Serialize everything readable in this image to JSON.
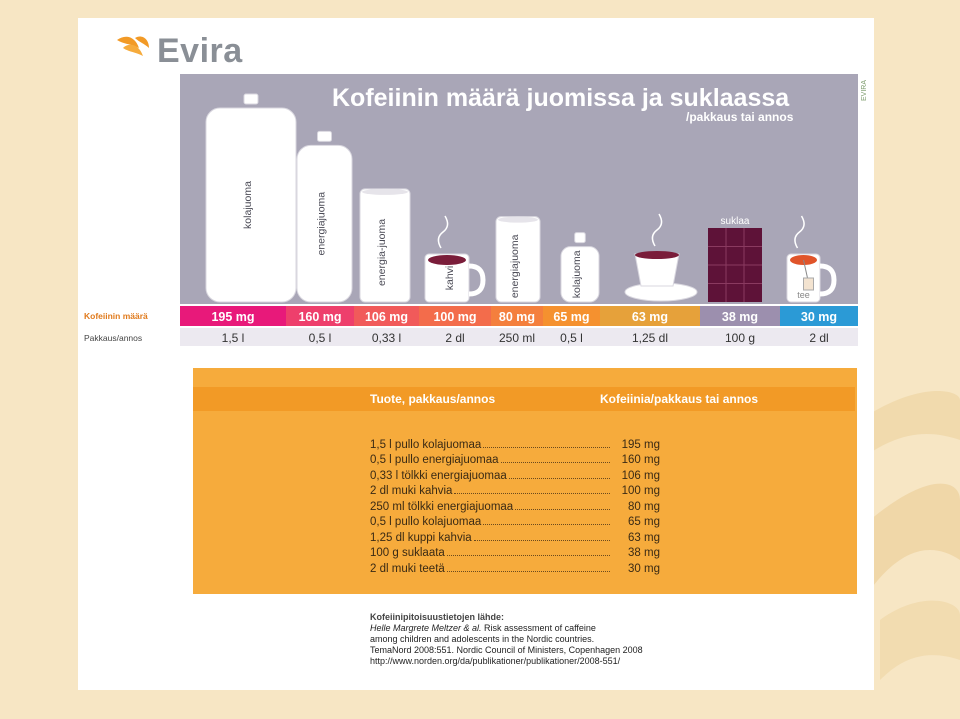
{
  "logo": {
    "text": "Evira"
  },
  "side_text": "EVIRA",
  "chart_data": {
    "type": "bar",
    "title": "Kofeiinin määrä juomissa ja suklaassa",
    "subtitle": "/pakkaus tai annos",
    "row_labels": {
      "caffeine": "Kofeiinin määrä",
      "package": "Pakkaus/annos"
    },
    "categories": [
      "kolajuoma",
      "energiajuoma",
      "energia-juoma",
      "kahvi",
      "energiajuoma",
      "kolajuoma",
      "kahvi",
      "suklaa",
      "tee"
    ],
    "values": [
      195,
      160,
      106,
      100,
      80,
      65,
      63,
      38,
      30
    ],
    "value_labels": [
      "195 mg",
      "160 mg",
      "106 mg",
      "100 mg",
      "80 mg",
      "65 mg",
      "63 mg",
      "38 mg",
      "30 mg"
    ],
    "package_labels": [
      "1,5 l",
      "0,5 l",
      "0,33 l",
      "2 dl",
      "250 ml",
      "0,5 l",
      "1,25 dl",
      "100 g",
      "2 dl"
    ],
    "unit": "mg",
    "band_colors": [
      "#e8197a",
      "#ee3f6c",
      "#f15a5a",
      "#f36c4b",
      "#f47f3d",
      "#f5912f",
      "#e6a13a",
      "#9c8fae",
      "#2b9ad6"
    ]
  },
  "table": {
    "header_product": "Tuote, pakkaus/annos",
    "header_caffeine": "Kofeiinia/pakkaus tai annos",
    "rows": [
      {
        "product": "1,5 l pullo kolajuomaa",
        "value": "195 mg"
      },
      {
        "product": "0,5 l pullo energiajuomaa",
        "value": "160 mg"
      },
      {
        "product": "0,33 l tölkki energiajuomaa",
        "value": "106 mg"
      },
      {
        "product": "2 dl muki kahvia",
        "value": "100 mg"
      },
      {
        "product": "250 ml tölkki energiajuomaa",
        "value": "80 mg"
      },
      {
        "product": "0,5 l pullo kolajuomaa",
        "value": "65 mg"
      },
      {
        "product": "1,25 dl kuppi kahvia",
        "value": "63 mg"
      },
      {
        "product": "100 g suklaata",
        "value": "38 mg"
      },
      {
        "product": "2 dl muki teetä",
        "value": "30 mg"
      }
    ]
  },
  "source": {
    "title": "Kofeiinipitoisuustietojen lähde:",
    "authors": "Helle Margrete Meltzer & al.",
    "line1_rest": " Risk assessment of caffeine",
    "line2": "among children and adolescents in the Nordic countries.",
    "line3": "TemaNord 2008:551. Nordic Council of Ministers, Copenhagen 2008",
    "line4": "http://www.norden.org/da/publikationer/publikationer/2008-551/"
  },
  "colors": {
    "panel_gray": "#a9a6b7",
    "orange": "#f6ab3c",
    "orange_dark": "#f29a26",
    "coffee": "#7a1d3a",
    "chocolate": "#5e1238"
  }
}
